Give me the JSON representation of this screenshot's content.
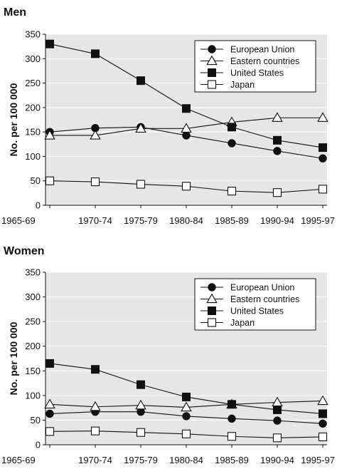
{
  "chart_data": [
    {
      "type": "line",
      "title": "Men",
      "ylabel": "No. per 100 000",
      "xlabel": "",
      "ylim": [
        0,
        350
      ],
      "yticks": [
        0,
        50,
        100,
        150,
        200,
        250,
        300,
        350
      ],
      "grid": true,
      "legend_position": "top-right",
      "categories": [
        "1965-69",
        "1970-74",
        "1975-79",
        "1980-84",
        "1985-89",
        "1990-94",
        "1995-97"
      ],
      "series": [
        {
          "name": "European Union",
          "marker": "circle-filled",
          "values": [
            150,
            158,
            160,
            143,
            127,
            111,
            96
          ]
        },
        {
          "name": "Eastern countries",
          "marker": "triangle-open",
          "values": [
            143,
            143,
            157,
            157,
            170,
            179,
            179
          ]
        },
        {
          "name": "United States",
          "marker": "square-filled",
          "values": [
            330,
            310,
            255,
            198,
            160,
            133,
            118
          ]
        },
        {
          "name": "Japan",
          "marker": "square-open",
          "values": [
            50,
            48,
            43,
            39,
            29,
            26,
            33
          ]
        }
      ]
    },
    {
      "type": "line",
      "title": "Women",
      "ylabel": "No. per 100 000",
      "xlabel": "",
      "ylim": [
        0,
        350
      ],
      "yticks": [
        0,
        50,
        100,
        150,
        200,
        250,
        300,
        350
      ],
      "grid": true,
      "legend_position": "top-right",
      "categories": [
        "1965-69",
        "1970-74",
        "1975-79",
        "1980-84",
        "1985-89",
        "1990-94",
        "1995-97"
      ],
      "series": [
        {
          "name": "European Union",
          "marker": "circle-filled",
          "values": [
            63,
            67,
            67,
            58,
            53,
            49,
            43
          ]
        },
        {
          "name": "Eastern countries",
          "marker": "triangle-open",
          "values": [
            82,
            77,
            80,
            76,
            82,
            86,
            89
          ]
        },
        {
          "name": "United States",
          "marker": "square-filled",
          "values": [
            165,
            153,
            122,
            97,
            82,
            71,
            63
          ]
        },
        {
          "name": "Japan",
          "marker": "square-open",
          "values": [
            27,
            28,
            25,
            22,
            17,
            14,
            16
          ]
        }
      ]
    }
  ],
  "colors": {
    "plot_background": "#e6e6e6",
    "grid": "#ffffff",
    "ink": "#111111",
    "legend_background": "#ffffff"
  }
}
